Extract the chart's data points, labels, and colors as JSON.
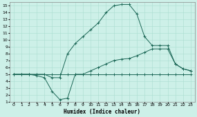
{
  "xlabel": "Humidex (Indice chaleur)",
  "background_color": "#cdf0e8",
  "grid_color": "#aaddd0",
  "line_color": "#1a6655",
  "xlim": [
    -0.5,
    23.5
  ],
  "ylim": [
    1,
    15.5
  ],
  "xticks": [
    0,
    1,
    2,
    3,
    4,
    5,
    6,
    7,
    8,
    9,
    10,
    11,
    12,
    13,
    14,
    15,
    16,
    17,
    18,
    19,
    20,
    21,
    22,
    23
  ],
  "yticks": [
    1,
    2,
    3,
    4,
    5,
    6,
    7,
    8,
    9,
    10,
    11,
    12,
    13,
    14,
    15
  ],
  "line1_x": [
    0,
    1,
    2,
    3,
    4,
    5,
    6,
    7,
    8,
    9,
    10,
    11,
    12,
    13,
    14,
    15,
    16,
    17,
    18,
    19,
    20,
    21,
    22,
    23
  ],
  "line1_y": [
    5,
    5,
    5,
    5,
    5,
    5,
    5,
    5,
    5,
    5,
    5,
    5,
    5,
    5,
    5,
    5,
    5,
    5,
    5,
    5,
    5,
    5,
    5,
    5
  ],
  "line2_x": [
    0,
    1,
    2,
    3,
    4,
    5,
    6,
    7,
    8,
    9,
    10,
    11,
    12,
    13,
    14,
    15,
    16,
    17,
    18,
    19,
    20,
    21,
    22,
    23
  ],
  "line2_y": [
    5,
    5,
    5,
    5,
    5,
    4.5,
    4.5,
    8.0,
    9.5,
    10.5,
    11.5,
    12.5,
    14.0,
    15.0,
    15.2,
    15.2,
    13.8,
    10.5,
    9.2,
    9.2,
    9.2,
    6.5,
    5.8,
    5.5
  ],
  "line3_x": [
    0,
    1,
    2,
    3,
    4,
    5,
    6,
    7,
    8,
    9,
    10,
    11,
    12,
    13,
    14,
    15,
    16,
    17,
    18,
    19,
    20,
    21,
    22,
    23
  ],
  "line3_y": [
    5,
    5,
    5,
    4.8,
    4.5,
    2.5,
    1.3,
    1.5,
    5,
    5,
    5.5,
    6.0,
    6.5,
    7.0,
    7.2,
    7.3,
    7.7,
    8.2,
    8.7,
    8.7,
    8.7,
    6.5,
    5.8,
    5.5
  ]
}
